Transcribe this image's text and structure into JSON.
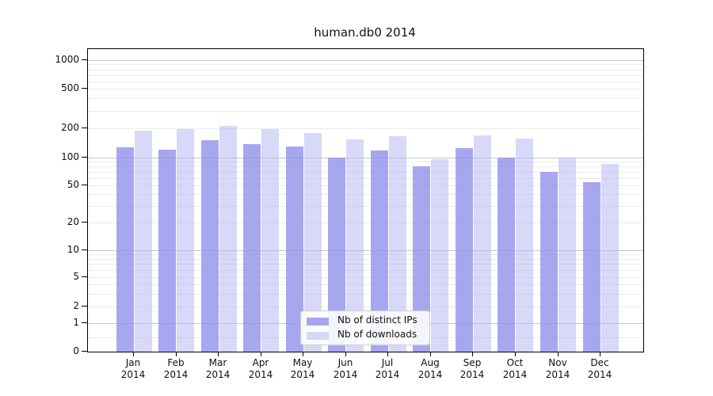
{
  "title": "human.db0 2014",
  "chart_data": {
    "type": "bar",
    "title": "human.db0 2014",
    "months": [
      "Jan",
      "Feb",
      "Mar",
      "Apr",
      "May",
      "Jun",
      "Jul",
      "Aug",
      "Sep",
      "Oct",
      "Nov",
      "Dec"
    ],
    "year": "2014",
    "categories": [
      "Jan 2014",
      "Feb 2014",
      "Mar 2014",
      "Apr 2014",
      "May 2014",
      "Jun 2014",
      "Jul 2014",
      "Aug 2014",
      "Sep 2014",
      "Oct 2014",
      "Nov 2014",
      "Dec 2014"
    ],
    "series": [
      {
        "name": "Nb of distinct IPs",
        "color": "rgba(145,145,236,0.8)",
        "values": [
          128,
          120,
          150,
          138,
          130,
          100,
          118,
          80,
          125,
          100,
          70,
          54
        ]
      },
      {
        "name": "Nb of downloads",
        "color": "rgba(184,184,242,0.55)",
        "values": [
          190,
          195,
          210,
          195,
          180,
          155,
          165,
          97,
          170,
          158,
          100,
          85
        ]
      }
    ],
    "yscale": "symlog",
    "y_ticks": [
      0,
      1,
      2,
      5,
      10,
      20,
      50,
      100,
      200,
      500,
      1000
    ],
    "ylim": [
      0,
      1300
    ],
    "grid": "on",
    "grid_major_color": "#c6c6c6",
    "grid_minor_color": "#ebebeb",
    "legend_position": "lower-center",
    "xlabel": "",
    "ylabel": ""
  }
}
